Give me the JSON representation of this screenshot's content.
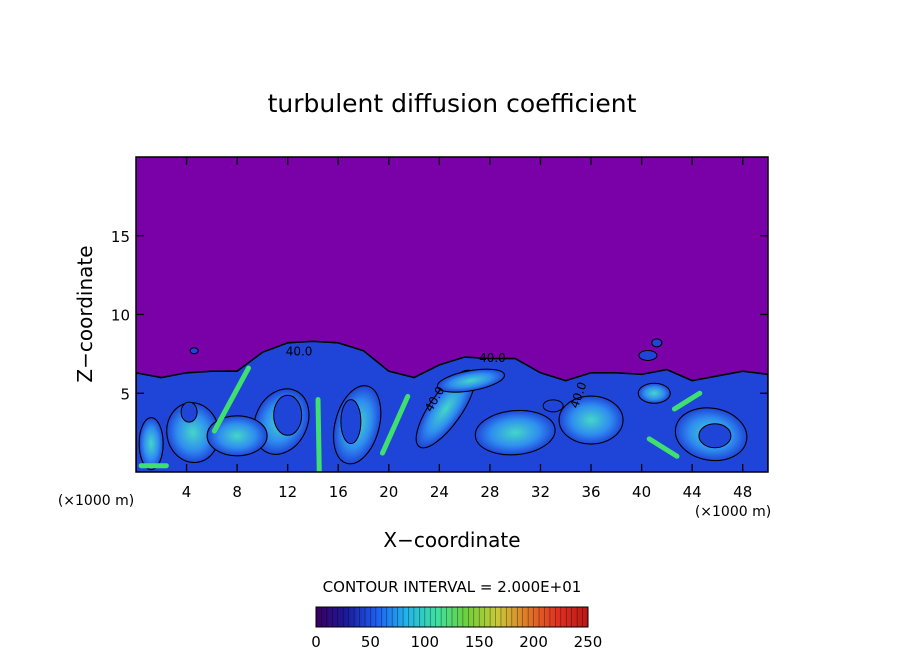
{
  "chart_data": {
    "type": "heatmap",
    "title": "turbulent diffusion coefficient",
    "xlabel": "X−coordinate",
    "ylabel": "Z−coordinate",
    "x_unit_label": "(×1000 m)",
    "y_unit_label": "(×1000 m)",
    "xlim": [
      0,
      50
    ],
    "ylim": [
      0,
      20
    ],
    "x_ticks": [
      4,
      8,
      12,
      16,
      20,
      24,
      28,
      32,
      36,
      40,
      44,
      48
    ],
    "y_ticks": [
      5,
      10,
      15
    ],
    "contour_interval_text": "CONTOUR INTERVAL = 2.000E+01",
    "contour_labels": [
      "40.0",
      "40.0",
      "40.0",
      "40.0"
    ],
    "colorbar": {
      "min": 0,
      "max": 250,
      "tick_values": [
        0,
        50,
        100,
        150,
        200,
        250
      ],
      "colors": [
        "#3a0060",
        "#1a1a9a",
        "#1e5ef2",
        "#22b4e8",
        "#3ee0a0",
        "#6fcf3a",
        "#c9c93a",
        "#e07828",
        "#e03020",
        "#b81818"
      ]
    },
    "field": {
      "background_value": 0,
      "background_color": "#7a00a8",
      "interior_color": "#1f45d8",
      "mid_color": "#2f8ef0",
      "high_color": "#44d6c8",
      "peak_color": "#40e070",
      "cloud_top_profile_x": [
        0,
        2,
        4,
        6,
        8,
        10,
        12,
        14,
        16,
        18,
        20,
        22,
        24,
        26,
        28,
        30,
        32,
        34,
        36,
        38,
        40,
        42,
        44,
        46,
        48,
        50
      ],
      "cloud_top_profile_z": [
        6.3,
        6.0,
        6.3,
        6.4,
        6.4,
        7.6,
        8.2,
        8.3,
        8.2,
        7.7,
        6.4,
        6.0,
        6.8,
        7.3,
        7.2,
        7.2,
        6.3,
        5.8,
        6.3,
        6.3,
        6.2,
        6.5,
        5.8,
        6.1,
        6.4,
        6.2
      ]
    }
  }
}
